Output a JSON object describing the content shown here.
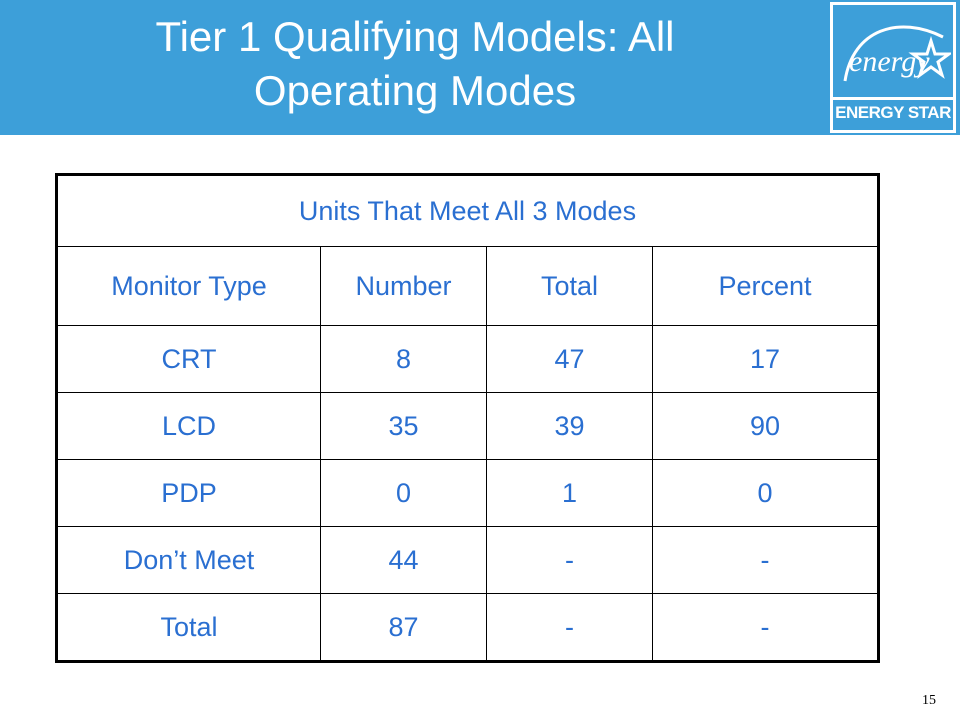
{
  "header": {
    "title_line1": "Tier 1 Qualifying Models: All",
    "title_line2": "Operating Modes",
    "background_color": "#3d9fd9"
  },
  "logo": {
    "script_text": "energy",
    "caption": "ENERGY STAR",
    "icon": "star-icon"
  },
  "table": {
    "caption": "Units That Meet All 3 Modes",
    "columns": [
      "Monitor Type",
      "Number",
      "Total",
      "Percent"
    ],
    "rows": [
      {
        "type": "CRT",
        "number": "8",
        "total": "47",
        "percent": "17"
      },
      {
        "type": "LCD",
        "number": "35",
        "total": "39",
        "percent": "90"
      },
      {
        "type": "PDP",
        "number": "0",
        "total": "1",
        "percent": "0"
      },
      {
        "type": "Don’t Meet",
        "number": "44",
        "total": "-",
        "percent": "-"
      },
      {
        "type": "Total",
        "number": "87",
        "total": "-",
        "percent": "-"
      }
    ],
    "text_color": "#2a6fd1",
    "highlight_color": "#e0196a"
  },
  "page_number": "15"
}
